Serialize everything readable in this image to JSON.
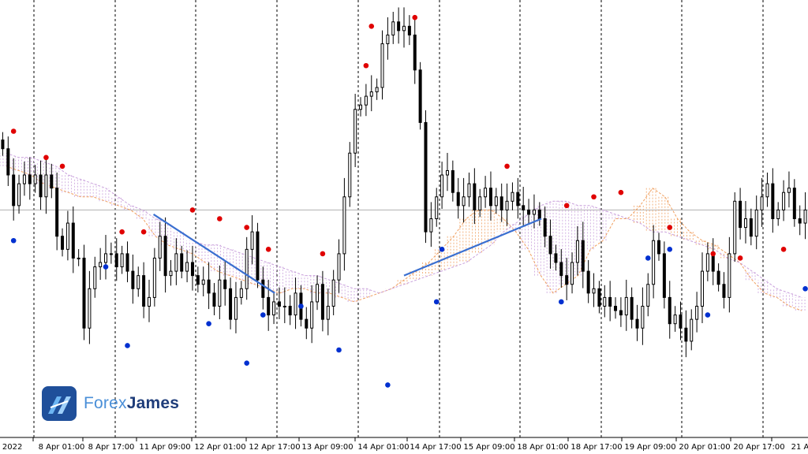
{
  "chart_data": {
    "type": "candlestick",
    "grid": "vertical dashed",
    "x_tick_labels": [
      "r 2022",
      "8 Apr 01:00",
      "8 Apr 17:00",
      "11 Apr 09:00",
      "12 Apr 01:00",
      "12 Apr 17:00",
      "13 Apr 09:00",
      "14 Apr 01:00",
      "14 Apr 17:00",
      "15 Apr 09:00",
      "18 Apr 01:00",
      "18 Apr 17:00",
      "19 Apr 09:00",
      "20 Apr 01:00",
      "20 Apr 17:00",
      "21 A"
    ],
    "ylim": [
      0,
      1
    ],
    "horizontal_line": 0.52,
    "price_series": [
      0.66,
      0.6,
      0.53,
      0.58,
      0.6,
      0.58,
      0.6,
      0.55,
      0.6,
      0.57,
      0.46,
      0.43,
      0.49,
      0.41,
      0.41,
      0.25,
      0.34,
      0.39,
      0.4,
      0.42,
      0.42,
      0.39,
      0.42,
      0.38,
      0.34,
      0.37,
      0.3,
      0.32,
      0.41,
      0.46,
      0.37,
      0.38,
      0.42,
      0.38,
      0.4,
      0.37,
      0.35,
      0.36,
      0.33,
      0.3,
      0.36,
      0.34,
      0.27,
      0.32,
      0.34,
      0.43,
      0.47,
      0.36,
      0.32,
      0.28,
      0.31,
      0.3,
      0.3,
      0.28,
      0.33,
      0.27,
      0.25,
      0.31,
      0.35,
      0.27,
      0.3,
      0.36,
      0.42,
      0.55,
      0.65,
      0.75,
      0.76,
      0.78,
      0.79,
      0.8,
      0.9,
      0.92,
      0.95,
      0.93,
      0.94,
      0.92,
      0.84,
      0.72,
      0.47,
      0.5,
      0.55,
      0.6,
      0.61,
      0.56,
      0.53,
      0.55,
      0.58,
      0.52,
      0.55,
      0.57,
      0.53,
      0.55,
      0.52,
      0.54,
      0.56,
      0.53,
      0.52,
      0.51,
      0.52,
      0.5,
      0.46,
      0.42,
      0.4,
      0.37,
      0.35,
      0.4,
      0.45,
      0.38,
      0.33,
      0.34,
      0.3,
      0.32,
      0.3,
      0.29,
      0.28,
      0.32,
      0.27,
      0.25,
      0.3,
      0.35,
      0.45,
      0.42,
      0.32,
      0.26,
      0.28,
      0.25,
      0.22,
      0.27,
      0.3,
      0.38,
      0.42,
      0.38,
      0.35,
      0.32,
      0.42,
      0.54,
      0.48,
      0.5,
      0.46,
      0.52,
      0.55,
      0.58,
      0.5,
      0.52,
      0.56,
      0.57,
      0.5,
      0.49,
      0.52
    ],
    "upper_fractals": [
      [
        2,
        0.7
      ],
      [
        8,
        0.64
      ],
      [
        11,
        0.62
      ],
      [
        22,
        0.47
      ],
      [
        26,
        0.47
      ],
      [
        35,
        0.52
      ],
      [
        40,
        0.5
      ],
      [
        45,
        0.48
      ],
      [
        49,
        0.43
      ],
      [
        59,
        0.42
      ],
      [
        67,
        0.85
      ],
      [
        68,
        0.94
      ],
      [
        76,
        0.96
      ],
      [
        93,
        0.62
      ],
      [
        104,
        0.53
      ],
      [
        109,
        0.55
      ],
      [
        114,
        0.56
      ],
      [
        123,
        0.48
      ],
      [
        131,
        0.42
      ],
      [
        136,
        0.41
      ],
      [
        144,
        0.43
      ],
      [
        150,
        0.34
      ],
      [
        155,
        0.47
      ],
      [
        160,
        0.5
      ]
    ],
    "lower_fractals": [
      [
        2,
        0.45
      ],
      [
        19,
        0.39
      ],
      [
        23,
        0.21
      ],
      [
        38,
        0.26
      ],
      [
        45,
        0.17
      ],
      [
        48,
        0.28
      ],
      [
        55,
        0.3
      ],
      [
        62,
        0.2
      ],
      [
        71,
        0.12
      ],
      [
        80,
        0.31
      ],
      [
        81,
        0.43
      ],
      [
        103,
        0.31
      ],
      [
        119,
        0.41
      ],
      [
        123,
        0.43
      ],
      [
        130,
        0.28
      ],
      [
        148,
        0.34
      ],
      [
        150,
        0.4
      ],
      [
        159,
        0.32
      ],
      [
        161,
        0.22
      ],
      [
        163,
        0.4
      ]
    ],
    "cloud_span_a": [
      0.62,
      0.61,
      0.6,
      0.58,
      0.57,
      0.56,
      0.55,
      0.55,
      0.54,
      0.53,
      0.52,
      0.5,
      0.46,
      0.44,
      0.43,
      0.42,
      0.4,
      0.38,
      0.37,
      0.36,
      0.35,
      0.34,
      0.33,
      0.34,
      0.34,
      0.33,
      0.33,
      0.32,
      0.31,
      0.32,
      0.33,
      0.34,
      0.36,
      0.38,
      0.4,
      0.43,
      0.46,
      0.5,
      0.52,
      0.52,
      0.5,
      0.47,
      0.43,
      0.37,
      0.33,
      0.35,
      0.37,
      0.43,
      0.45,
      0.5,
      0.5,
      0.53,
      0.57,
      0.55,
      0.5,
      0.47,
      0.45,
      0.44,
      0.42,
      0.4,
      0.36,
      0.33,
      0.32,
      0.3,
      0.29
    ],
    "cloud_span_b": [
      0.65,
      0.64,
      0.64,
      0.63,
      0.62,
      0.6,
      0.59,
      0.58,
      0.57,
      0.55,
      0.53,
      0.52,
      0.5,
      0.49,
      0.47,
      0.45,
      0.44,
      0.44,
      0.43,
      0.42,
      0.41,
      0.4,
      0.39,
      0.38,
      0.37,
      0.37,
      0.36,
      0.35,
      0.34,
      0.34,
      0.33,
      0.34,
      0.35,
      0.36,
      0.37,
      0.38,
      0.39,
      0.4,
      0.42,
      0.44,
      0.47,
      0.49,
      0.51,
      0.53,
      0.54,
      0.54,
      0.53,
      0.53,
      0.52,
      0.51,
      0.5,
      0.49,
      0.47,
      0.47,
      0.46,
      0.45,
      0.44,
      0.43,
      0.41,
      0.4,
      0.38,
      0.36,
      0.34,
      0.33,
      0.32
    ],
    "trendlines": [
      {
        "from": [
          0.19,
          0.51
        ],
        "to": [
          0.34,
          0.33
        ],
        "color": "#3a6fd0"
      },
      {
        "from": [
          0.5,
          0.37
        ],
        "to": [
          0.67,
          0.5
        ],
        "color": "#3a6fd0"
      }
    ],
    "colors": {
      "candle": "#000000",
      "upper_fractal": "#e00000",
      "lower_fractal": "#0030d0",
      "cloud_bull": "#f0a060",
      "cloud_bear": "#c9a0dc",
      "trendline": "#3a6fd0",
      "grid": "#000000",
      "hline": "#b0b0b0"
    }
  },
  "brand": {
    "name_part1": "Forex",
    "name_part2": "James",
    "icon": "forexjames-logo-icon"
  }
}
